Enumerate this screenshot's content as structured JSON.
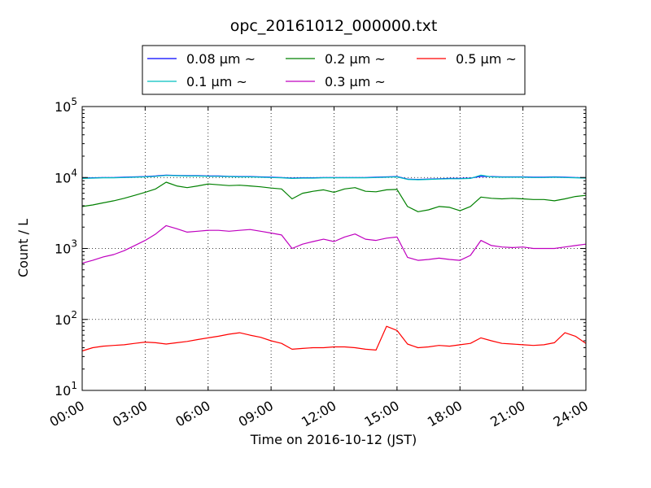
{
  "chart_data": {
    "type": "line",
    "title": "opc_20161012_000000.txt",
    "xlabel": "Time on 2016-10-12 (JST)",
    "ylabel": "Count / L",
    "y_scale": "log",
    "x_unit": "hours",
    "xlim": [
      0,
      24
    ],
    "ylim": [
      10,
      100000
    ],
    "grid": true,
    "grid_style": "dotted",
    "legend_position": "top-center-outside",
    "x_tick_labels": [
      "00:00",
      "03:00",
      "06:00",
      "09:00",
      "12:00",
      "15:00",
      "18:00",
      "21:00",
      "24:00"
    ],
    "y_ticks": [
      {
        "base": "10",
        "exp": "1",
        "value": 10
      },
      {
        "base": "10",
        "exp": "2",
        "value": 100
      },
      {
        "base": "10",
        "exp": "3",
        "value": 1000
      },
      {
        "base": "10",
        "exp": "4",
        "value": 10000
      },
      {
        "base": "10",
        "exp": "5",
        "value": 100000
      }
    ],
    "x": [
      0,
      0.5,
      1,
      1.5,
      2,
      2.5,
      3,
      3.5,
      4,
      4.5,
      5,
      5.5,
      6,
      6.5,
      7,
      7.5,
      8,
      8.5,
      9,
      9.5,
      10,
      10.5,
      11,
      11.5,
      12,
      12.5,
      13,
      13.5,
      14,
      14.5,
      15,
      15.5,
      16,
      16.5,
      17,
      17.5,
      18,
      18.5,
      19,
      19.5,
      20,
      20.5,
      21,
      21.5,
      22,
      22.5,
      23,
      23.5,
      24
    ],
    "series": [
      {
        "name": "0.08 μm ~",
        "color": "#0000ff",
        "values": [
          9800,
          9900,
          10000,
          10000,
          10100,
          10200,
          10300,
          10500,
          10800,
          10700,
          10600,
          10600,
          10500,
          10500,
          10400,
          10300,
          10300,
          10200,
          10100,
          10000,
          9800,
          9900,
          9900,
          10000,
          10000,
          10000,
          10000,
          10000,
          10100,
          10200,
          10300,
          9500,
          9400,
          9500,
          9600,
          9700,
          9700,
          9800,
          10400,
          10300,
          10200,
          10200,
          10200,
          10100,
          10100,
          10200,
          10100,
          10000,
          9900
        ]
      },
      {
        "name": "0.1 μm ~",
        "color": "#00bfbf",
        "values": [
          9700,
          9800,
          9900,
          9900,
          10000,
          10100,
          10200,
          10400,
          10700,
          10600,
          10500,
          10500,
          10400,
          10400,
          10300,
          10200,
          10200,
          10100,
          10000,
          9900,
          9700,
          9800,
          9800,
          9900,
          9900,
          9900,
          9900,
          9900,
          10000,
          10100,
          10200,
          9400,
          9300,
          9400,
          9500,
          9600,
          9600,
          9700,
          10800,
          10200,
          10100,
          10100,
          10100,
          10000,
          10000,
          10100,
          10000,
          9900,
          9800
        ]
      },
      {
        "name": "0.2 μm ~",
        "color": "#008000",
        "values": [
          3900,
          4100,
          4400,
          4700,
          5100,
          5600,
          6200,
          6900,
          8600,
          7600,
          7200,
          7600,
          8100,
          7900,
          7700,
          7800,
          7600,
          7400,
          7100,
          6900,
          5000,
          6000,
          6400,
          6700,
          6200,
          6900,
          7200,
          6400,
          6300,
          6700,
          6800,
          3900,
          3300,
          3500,
          3900,
          3800,
          3400,
          3900,
          5300,
          5100,
          5000,
          5100,
          5000,
          4900,
          4900,
          4700,
          5000,
          5400,
          5600
        ]
      },
      {
        "name": "0.3 μm ~",
        "color": "#bf00bf",
        "values": [
          620,
          680,
          760,
          820,
          930,
          1100,
          1300,
          1600,
          2100,
          1900,
          1700,
          1750,
          1800,
          1800,
          1750,
          1800,
          1850,
          1750,
          1650,
          1550,
          1000,
          1150,
          1250,
          1350,
          1250,
          1450,
          1600,
          1350,
          1300,
          1400,
          1450,
          750,
          680,
          700,
          730,
          700,
          680,
          800,
          1300,
          1100,
          1050,
          1030,
          1050,
          1000,
          1000,
          1000,
          1050,
          1100,
          1150
        ]
      },
      {
        "name": "0.5 μm ~",
        "color": "#ff0000",
        "values": [
          36,
          40,
          42,
          43,
          44,
          46,
          48,
          47,
          45,
          47,
          49,
          52,
          55,
          58,
          62,
          65,
          60,
          56,
          50,
          46,
          38,
          39,
          40,
          40,
          41,
          41,
          40,
          38,
          37,
          80,
          70,
          45,
          40,
          41,
          43,
          42,
          44,
          46,
          55,
          50,
          46,
          45,
          44,
          43,
          44,
          47,
          65,
          58,
          46
        ]
      }
    ]
  }
}
